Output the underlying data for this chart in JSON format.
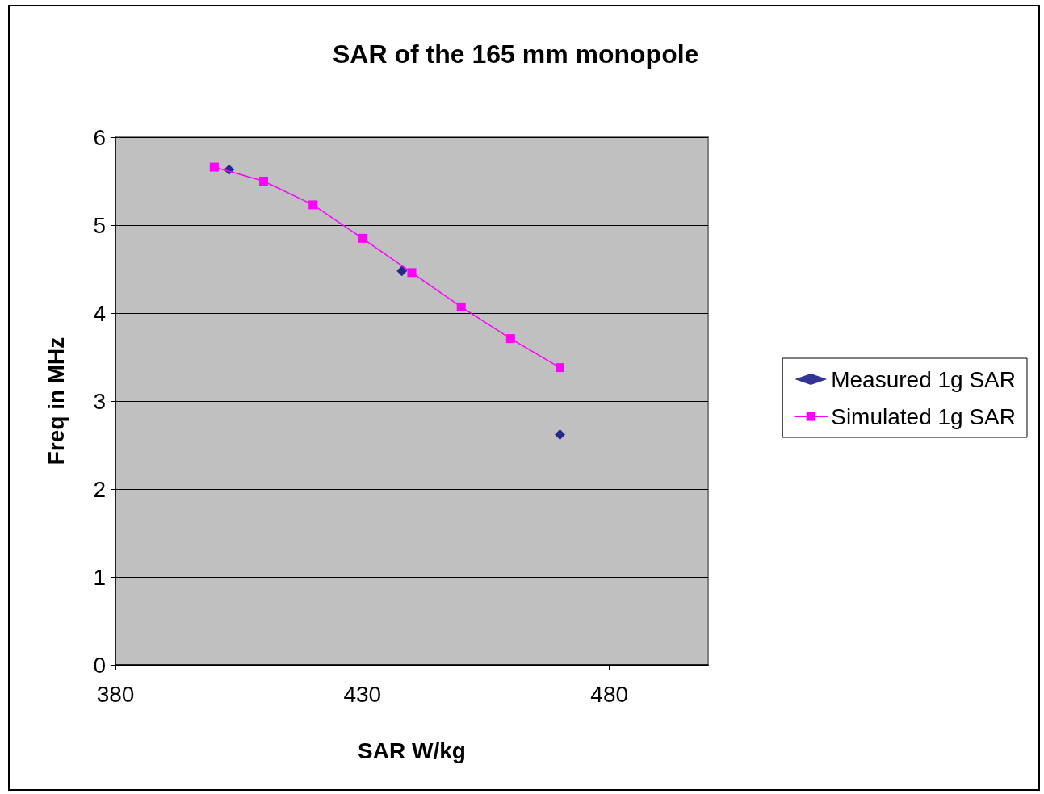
{
  "chart_data": {
    "type": "line",
    "title": "SAR of the 165 mm monopole",
    "xlabel": "SAR W/kg",
    "ylabel": "Freq in MHz",
    "xlim": [
      380,
      500
    ],
    "xticks": [
      380,
      430,
      480
    ],
    "ylim": [
      0,
      6
    ],
    "yticks": [
      0,
      1,
      2,
      3,
      4,
      5,
      6
    ],
    "grid": "y",
    "legend": "right",
    "series": [
      {
        "name": "Measured 1g SAR",
        "type": "scatter",
        "marker": "diamond",
        "color": "#000080",
        "x": [
          403,
          438,
          470
        ],
        "values": [
          5.63,
          4.48,
          2.62
        ]
      },
      {
        "name": "Simulated 1g SAR",
        "marker": "square",
        "line_style": "solid",
        "color": "#ff00ff",
        "x": [
          400,
          410,
          420,
          430,
          440,
          450,
          460,
          470
        ],
        "values": [
          5.66,
          5.5,
          5.23,
          4.85,
          4.46,
          4.07,
          3.71,
          3.38
        ]
      }
    ]
  }
}
